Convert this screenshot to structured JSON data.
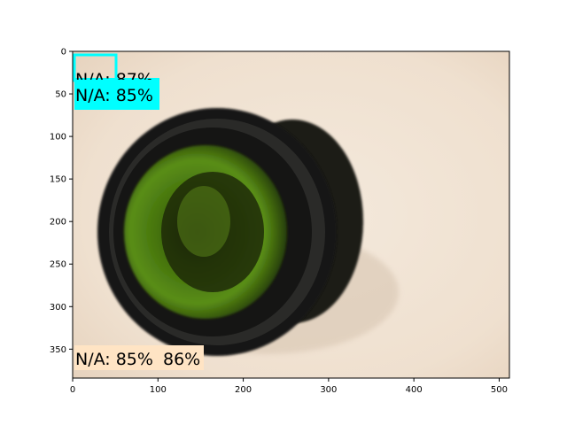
{
  "axes": {
    "x_ticks": [
      0,
      100,
      200,
      300,
      400,
      500
    ],
    "y_ticks": [
      0,
      50,
      100,
      150,
      200,
      250,
      300,
      350
    ],
    "xlim": [
      0,
      512
    ],
    "ylim": [
      384,
      0
    ]
  },
  "detections": [
    {
      "label": "N/A: 87%",
      "color": "#00ffff"
    },
    {
      "label": "N/A: 85%",
      "color": "#00ffff"
    },
    {
      "label": "N/A: 85%",
      "color": "#ffe4c4"
    },
    {
      "label": "86%",
      "color": "#ffe4c4"
    }
  ],
  "colors": {
    "background": "#f0e2d3",
    "bottle": "#171716",
    "glass": "#4a7a10"
  }
}
